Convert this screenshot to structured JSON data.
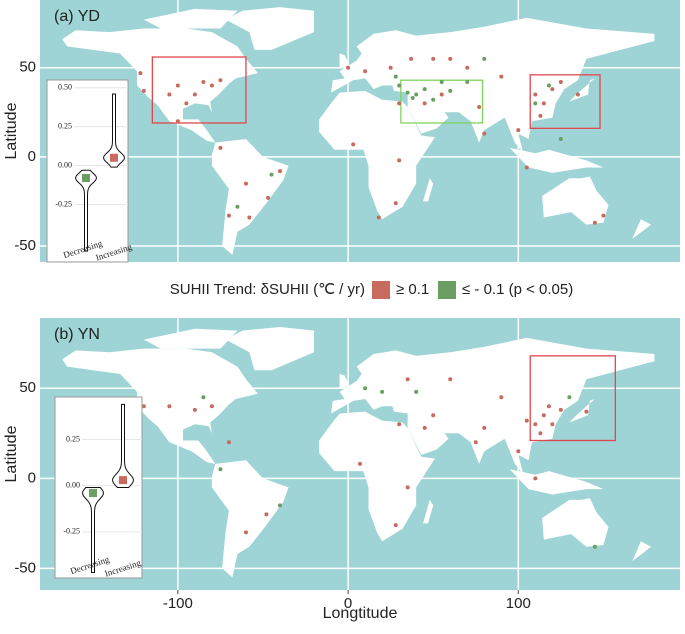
{
  "legend": {
    "title": "SUHII Trend: δSUHII (℃ / yr)",
    "entries": [
      {
        "name": "≥ 0.1",
        "color": "#c86a5e"
      },
      {
        "name": "≤ - 0.1 (p < 0.05)",
        "color": "#6a9e62"
      }
    ]
  },
  "chart_data": [
    {
      "type": "map",
      "title": "(a) YD",
      "y_label": "Latitude",
      "xlim": [
        -181,
        195
      ],
      "ylim": [
        -59,
        88
      ],
      "yticks": [
        -50,
        0,
        50
      ],
      "boxes": [
        {
          "lon": [
            -115,
            -60
          ],
          "lat": [
            19,
            56
          ],
          "color": "#e0474c"
        },
        {
          "lon": [
            31,
            79
          ],
          "lat": [
            19,
            43
          ],
          "color": "#7ed35c"
        },
        {
          "lon": [
            107,
            148
          ],
          "lat": [
            16,
            46
          ],
          "color": "#e0474c"
        }
      ],
      "series": [
        {
          "lon": [
            -100,
            -90,
            -85,
            -80,
            -75,
            -95,
            -105,
            -120,
            -122,
            -100,
            -75,
            -60,
            -47,
            -58,
            -70,
            -40,
            0,
            10,
            25,
            37,
            50,
            60,
            30,
            45,
            55,
            77,
            80,
            110,
            115,
            120,
            125,
            113,
            135,
            105,
            3,
            30,
            28,
            18,
            145,
            150,
            100,
            90,
            70
          ],
          "lat": [
            40,
            35,
            42,
            40,
            43,
            30,
            35,
            37,
            47,
            20,
            5,
            -15,
            -23,
            -34,
            -33,
            -8,
            50,
            48,
            50,
            55,
            55,
            55,
            30,
            30,
            35,
            28,
            13,
            35,
            30,
            38,
            42,
            23,
            35,
            -6,
            7,
            -2,
            -26,
            -34,
            -37,
            -33,
            15,
            45,
            50
          ]
        },
        {
          "lon": [
            35,
            40,
            50,
            45,
            60,
            55,
            70,
            30,
            38,
            110,
            118,
            -65,
            -45,
            125,
            80,
            28
          ],
          "lat": [
            36,
            35,
            32,
            38,
            37,
            42,
            42,
            40,
            33,
            30,
            40,
            -28,
            -10,
            10,
            55,
            45
          ]
        }
      ],
      "inset": {
        "categories": [
          "Decreasing",
          "Increasing"
        ],
        "ylim": [
          -0.62,
          0.55
        ],
        "yticks": [
          -0.25,
          {
            "value": 0,
            "label": "0.00"
          },
          0.25,
          {
            "value": 0.5,
            "label": "0.50"
          }
        ],
        "min": [
          -0.55,
          -0.01
        ],
        "median": [
          -0.08,
          0.05
        ],
        "max": [
          -0.03,
          0.46
        ]
      }
    },
    {
      "type": "map",
      "title": "(b) YN",
      "y_label": "Latitude",
      "x_label": "Longtitude",
      "xlim": [
        -181,
        195
      ],
      "ylim": [
        -62,
        89
      ],
      "yticks": [
        -50,
        0,
        50
      ],
      "xticks": [
        -100,
        0,
        100
      ],
      "boxes": [
        {
          "lon": [
            107,
            157
          ],
          "lat": [
            21,
            68
          ],
          "color": "#e0474c"
        }
      ],
      "series": [
        {
          "lon": [
            -90,
            -80,
            -105,
            -120,
            -70,
            -60,
            -48,
            115,
            120,
            110,
            118,
            125,
            105,
            113,
            80,
            75,
            50,
            45,
            30,
            35,
            60,
            90,
            140,
            7,
            35,
            28,
            100,
            110
          ],
          "lat": [
            38,
            40,
            40,
            40,
            20,
            -30,
            -20,
            35,
            30,
            30,
            40,
            38,
            32,
            25,
            28,
            20,
            35,
            28,
            30,
            55,
            55,
            45,
            37,
            8,
            -5,
            -26,
            15,
            0
          ]
        },
        {
          "lon": [
            -85,
            -75,
            10,
            20,
            40,
            130,
            145,
            -40
          ],
          "lat": [
            45,
            5,
            50,
            48,
            48,
            45,
            -38,
            -15
          ]
        }
      ],
      "inset": {
        "categories": [
          "Decreasing",
          "Increasing"
        ],
        "ylim": [
          -0.5,
          0.48
        ],
        "yticks": [
          -0.25,
          {
            "value": 0,
            "label": "0.00"
          },
          0.25
        ],
        "min": [
          -0.47,
          -0.01
        ],
        "median": [
          -0.04,
          0.03
        ],
        "max": [
          -0.01,
          0.44
        ]
      }
    }
  ]
}
